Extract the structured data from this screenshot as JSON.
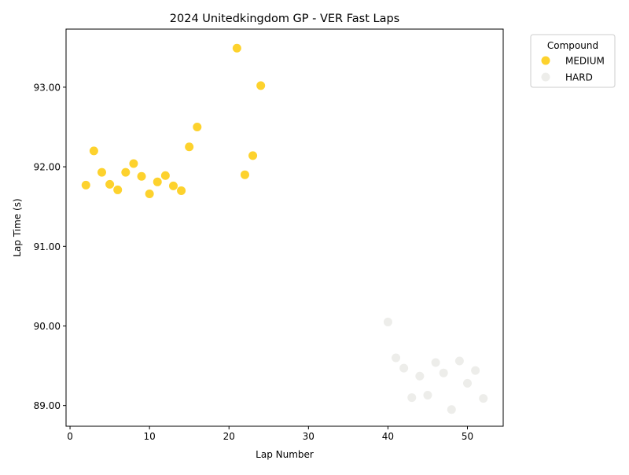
{
  "chart_data": {
    "type": "scatter",
    "title": "2024 Unitedkingdom GP - VER Fast Laps",
    "xlabel": "Lap Number",
    "ylabel": "Lap Time (s)",
    "xlim": [
      -0.5,
      54.5
    ],
    "ylim": [
      88.74,
      93.73
    ],
    "xticks": [
      0,
      10,
      20,
      30,
      40,
      50
    ],
    "xtick_labels": [
      "0",
      "10",
      "20",
      "30",
      "40",
      "50"
    ],
    "yticks": [
      89,
      90,
      91,
      92,
      93
    ],
    "ytick_labels": [
      "89.00",
      "90.00",
      "91.00",
      "92.00",
      "93.00"
    ],
    "grid": false,
    "legend": {
      "title": "Compound",
      "placement": "outside-upper-right"
    },
    "series": [
      {
        "name": "MEDIUM",
        "color": "#fdd22d",
        "points": [
          {
            "x": 2,
            "y": 91.77
          },
          {
            "x": 3,
            "y": 92.2
          },
          {
            "x": 4,
            "y": 91.93
          },
          {
            "x": 5,
            "y": 91.78
          },
          {
            "x": 6,
            "y": 91.71
          },
          {
            "x": 7,
            "y": 91.93
          },
          {
            "x": 8,
            "y": 92.04
          },
          {
            "x": 9,
            "y": 91.88
          },
          {
            "x": 10,
            "y": 91.66
          },
          {
            "x": 11,
            "y": 91.81
          },
          {
            "x": 12,
            "y": 91.89
          },
          {
            "x": 13,
            "y": 91.76
          },
          {
            "x": 14,
            "y": 91.7
          },
          {
            "x": 15,
            "y": 92.25
          },
          {
            "x": 16,
            "y": 92.5
          },
          {
            "x": 21,
            "y": 93.49
          },
          {
            "x": 22,
            "y": 91.9
          },
          {
            "x": 23,
            "y": 92.14
          },
          {
            "x": 24,
            "y": 93.02
          }
        ]
      },
      {
        "name": "HARD",
        "color": "#ededea",
        "points": [
          {
            "x": 40,
            "y": 90.05
          },
          {
            "x": 41,
            "y": 89.6
          },
          {
            "x": 42,
            "y": 89.47
          },
          {
            "x": 43,
            "y": 89.1
          },
          {
            "x": 44,
            "y": 89.37
          },
          {
            "x": 45,
            "y": 89.13
          },
          {
            "x": 46,
            "y": 89.54
          },
          {
            "x": 47,
            "y": 89.41
          },
          {
            "x": 48,
            "y": 88.95
          },
          {
            "x": 49,
            "y": 89.56
          },
          {
            "x": 50,
            "y": 89.28
          },
          {
            "x": 51,
            "y": 89.44
          },
          {
            "x": 52,
            "y": 89.09
          }
        ]
      }
    ]
  }
}
